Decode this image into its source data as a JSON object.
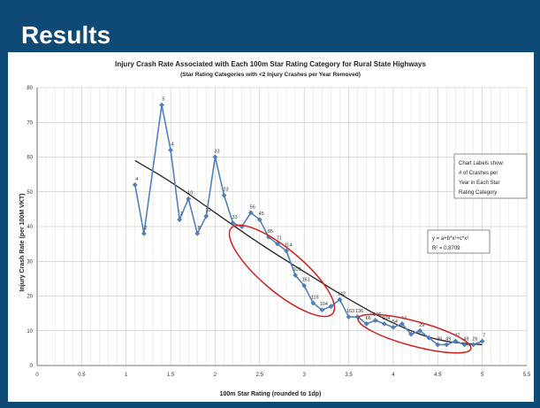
{
  "slide": {
    "title": "Results"
  },
  "chart_data": {
    "type": "line",
    "title": "Injury Crash Rate Associated with Each 100m Star Rating Category for Rural State Highways",
    "subtitle": "(Star Rating Categories with <2 Injury Crashes per Year Removed)",
    "xlabel": "100m Star Rating (rounded to 1dp)",
    "ylabel": "Injury Crash Rate (per 100M VKT)",
    "xlim": [
      0,
      5.5
    ],
    "ylim": [
      0,
      80
    ],
    "x_ticks": [
      "0",
      "0.5",
      "1",
      "1.5",
      "2",
      "2.5",
      "3",
      "3.5",
      "4",
      "4.5",
      "5",
      "5.5"
    ],
    "y_ticks": [
      "0",
      "10",
      "20",
      "30",
      "40",
      "50",
      "60",
      "70",
      "80"
    ],
    "grid": true,
    "series": [
      {
        "points": [
          {
            "x": 1.1,
            "y": 52,
            "label": "4"
          },
          {
            "x": 1.2,
            "y": 38,
            "label": "2"
          },
          {
            "x": 1.4,
            "y": 75,
            "label": "5"
          },
          {
            "x": 1.5,
            "y": 62,
            "label": "4"
          },
          {
            "x": 1.6,
            "y": 42,
            "label": "3"
          },
          {
            "x": 1.7,
            "y": 48,
            "label": "10"
          },
          {
            "x": 1.8,
            "y": 38,
            "label": "8"
          },
          {
            "x": 1.9,
            "y": 43,
            "label": "12"
          },
          {
            "x": 2.0,
            "y": 60,
            "label": "33"
          },
          {
            "x": 2.1,
            "y": 49,
            "label": "23"
          },
          {
            "x": 2.2,
            "y": 41,
            "label": "33"
          },
          {
            "x": 2.3,
            "y": 40,
            "label": ""
          },
          {
            "x": 2.4,
            "y": 44,
            "label": "56"
          },
          {
            "x": 2.5,
            "y": 42,
            "label": "45"
          },
          {
            "x": 2.6,
            "y": 37,
            "label": "85"
          },
          {
            "x": 2.7,
            "y": 35,
            "label": "71"
          },
          {
            "x": 2.8,
            "y": 33,
            "label": "114"
          },
          {
            "x": 2.9,
            "y": 26,
            "label": "109"
          },
          {
            "x": 3.0,
            "y": 23,
            "label": "161"
          },
          {
            "x": 3.1,
            "y": 18,
            "label": "115"
          },
          {
            "x": 3.2,
            "y": 16,
            "label": "104"
          },
          {
            "x": 3.3,
            "y": 17,
            "label": ""
          },
          {
            "x": 3.4,
            "y": 19,
            "label": "142"
          },
          {
            "x": 3.5,
            "y": 14,
            "label": "163"
          },
          {
            "x": 3.6,
            "y": 14,
            "label": "136"
          },
          {
            "x": 3.7,
            "y": 12,
            "label": "66"
          },
          {
            "x": 3.8,
            "y": 13,
            "label": "106"
          },
          {
            "x": 3.9,
            "y": 12,
            "label": "104"
          },
          {
            "x": 4.0,
            "y": 11,
            "label": "54"
          },
          {
            "x": 4.1,
            "y": 12,
            "label": "44"
          },
          {
            "x": 4.2,
            "y": 9,
            "label": ""
          },
          {
            "x": 4.3,
            "y": 10,
            "label": "29"
          },
          {
            "x": 4.4,
            "y": 8,
            "label": ""
          },
          {
            "x": 4.5,
            "y": 6,
            "label": "26"
          },
          {
            "x": 4.6,
            "y": 6,
            "label": "49"
          },
          {
            "x": 4.7,
            "y": 7,
            "label": "47"
          },
          {
            "x": 4.8,
            "y": 6,
            "label": "49"
          },
          {
            "x": 4.9,
            "y": 6,
            "label": "26"
          },
          {
            "x": 5.0,
            "y": 7,
            "label": "7"
          }
        ]
      }
    ],
    "trendline": {
      "equation_text": "y = a+b*x¹+c*x²",
      "r2_text": "R² = 0.8709",
      "points": [
        {
          "x": 1.1,
          "y": 59
        },
        {
          "x": 1.5,
          "y": 53
        },
        {
          "x": 2.0,
          "y": 44
        },
        {
          "x": 2.5,
          "y": 35
        },
        {
          "x": 3.0,
          "y": 27
        },
        {
          "x": 3.5,
          "y": 19
        },
        {
          "x": 4.0,
          "y": 12
        },
        {
          "x": 4.5,
          "y": 7
        },
        {
          "x": 5.0,
          "y": 6
        }
      ]
    },
    "annotation_box": [
      "Chart Labels show:",
      "# of Crashes per",
      "Year in Each Star",
      "Rating Category"
    ],
    "series_color": "#4f81bd",
    "trend_color": "#222222",
    "highlight_color": "#d42020"
  }
}
